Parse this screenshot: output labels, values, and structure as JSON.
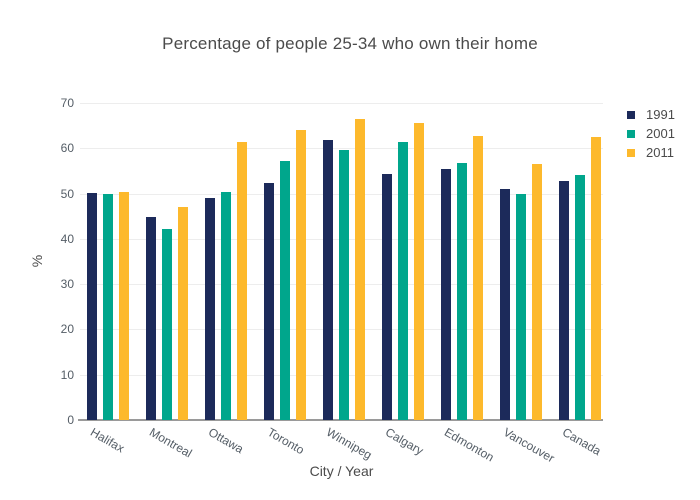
{
  "title": "Percentage of people 25-34 who own their home",
  "chart_data": {
    "type": "bar",
    "title": "Percentage of people 25-34 who own their home",
    "xlabel": "City / Year",
    "ylabel": "%",
    "categories": [
      "Halifax",
      "Montreal",
      "Ottawa",
      "Toronto",
      "Winnipeg",
      "Calgary",
      "Edmonton",
      "Vancouver",
      "Canada"
    ],
    "series": [
      {
        "name": "1991",
        "color": "#1c2a5a",
        "values": [
          50.2,
          44.9,
          49.0,
          52.4,
          61.8,
          54.3,
          55.4,
          51.0,
          52.8
        ]
      },
      {
        "name": "2001",
        "color": "#00a68c",
        "values": [
          50.0,
          42.2,
          50.3,
          57.3,
          59.6,
          61.3,
          56.7,
          50.0,
          54.2
        ]
      },
      {
        "name": "2011",
        "color": "#fdb92c",
        "values": [
          50.4,
          47.1,
          61.3,
          64.0,
          66.4,
          65.6,
          62.7,
          56.5,
          62.4
        ]
      }
    ],
    "ylim": [
      0,
      70
    ],
    "yticks": [
      0,
      10,
      20,
      30,
      40,
      50,
      60,
      70
    ],
    "grid": true,
    "legend_position": "right",
    "background_color": "#ffffff"
  }
}
